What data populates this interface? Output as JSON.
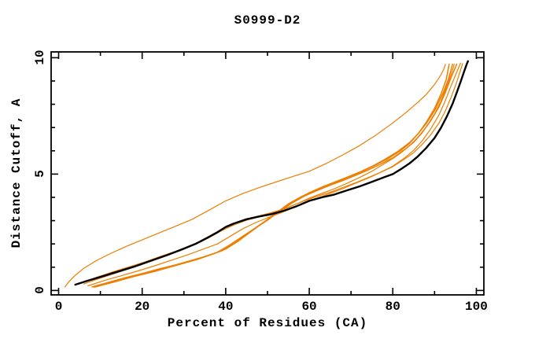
{
  "title": "S0999-D2",
  "colors": {
    "background": "#ffffff",
    "frame": "#000000",
    "text": "#000000",
    "reference_curve": "#000000",
    "model_curves": "#ED7E00"
  },
  "chart_data": {
    "type": "line",
    "title": "S0999-D2",
    "xlabel": "Percent of Residues (CA)",
    "ylabel": "Distance Cutoff, A",
    "xlim": [
      -1.79,
      101.8
    ],
    "ylim": [
      -0.19,
      10.25
    ],
    "x_ticks_major": [
      0,
      20,
      40,
      60,
      80,
      100
    ],
    "x_ticks_minor": [
      10,
      30,
      50,
      70,
      90
    ],
    "y_ticks_major": [
      0,
      5,
      10
    ],
    "y_ticks_minor": [
      1,
      2,
      3,
      4,
      6,
      7,
      8,
      9
    ],
    "grid": false,
    "legend": null,
    "series": [
      {
        "id": "orange-high",
        "color": "#ED7E00",
        "width": 1.2,
        "points": [
          [
            1.5,
            0.15
          ],
          [
            2.5,
            0.38
          ],
          [
            4,
            0.65
          ],
          [
            6,
            0.95
          ],
          [
            9,
            1.28
          ],
          [
            12,
            1.55
          ],
          [
            16,
            1.88
          ],
          [
            20,
            2.17
          ],
          [
            24,
            2.47
          ],
          [
            28,
            2.76
          ],
          [
            32,
            3.06
          ],
          [
            36,
            3.45
          ],
          [
            40,
            3.85
          ],
          [
            44,
            4.16
          ],
          [
            48,
            4.42
          ],
          [
            52,
            4.66
          ],
          [
            56,
            4.89
          ],
          [
            60,
            5.12
          ],
          [
            64,
            5.45
          ],
          [
            68,
            5.82
          ],
          [
            72,
            6.22
          ],
          [
            76,
            6.68
          ],
          [
            80,
            7.2
          ],
          [
            83,
            7.62
          ],
          [
            86,
            8.08
          ],
          [
            88,
            8.42
          ],
          [
            90,
            8.85
          ],
          [
            91.3,
            9.2
          ],
          [
            92.2,
            9.5
          ],
          [
            92.6,
            9.72
          ]
        ]
      },
      {
        "id": "orange-2",
        "color": "#ED7E00",
        "width": 1.2,
        "points": [
          [
            5,
            0.3
          ],
          [
            9,
            0.56
          ],
          [
            13,
            0.8
          ],
          [
            17,
            1.02
          ],
          [
            21,
            1.25
          ],
          [
            25,
            1.5
          ],
          [
            29,
            1.74
          ],
          [
            33,
            2.04
          ],
          [
            36,
            2.33
          ],
          [
            39,
            2.63
          ],
          [
            41,
            2.8
          ],
          [
            44,
            3.0
          ],
          [
            47,
            3.16
          ],
          [
            50,
            3.3
          ],
          [
            53,
            3.45
          ],
          [
            56,
            3.65
          ],
          [
            59,
            3.86
          ],
          [
            62,
            4.05
          ],
          [
            65,
            4.22
          ],
          [
            68,
            4.42
          ],
          [
            71,
            4.62
          ],
          [
            74,
            4.84
          ],
          [
            77,
            5.07
          ],
          [
            80,
            5.32
          ],
          [
            83,
            5.67
          ],
          [
            85,
            5.92
          ],
          [
            87,
            6.27
          ],
          [
            89,
            6.67
          ],
          [
            91,
            7.18
          ],
          [
            92.5,
            7.68
          ],
          [
            94,
            8.32
          ],
          [
            95.2,
            8.9
          ],
          [
            96.1,
            9.4
          ],
          [
            96.7,
            9.75
          ]
        ]
      },
      {
        "id": "orange-3",
        "color": "#ED7E00",
        "width": 1.2,
        "points": [
          [
            6,
            0.28
          ],
          [
            10,
            0.53
          ],
          [
            15,
            0.82
          ],
          [
            20,
            1.12
          ],
          [
            25,
            1.44
          ],
          [
            29,
            1.7
          ],
          [
            33,
            2.0
          ],
          [
            36,
            2.27
          ],
          [
            39,
            2.57
          ],
          [
            42,
            2.82
          ],
          [
            45,
            3.02
          ],
          [
            48,
            3.17
          ],
          [
            51,
            3.32
          ],
          [
            54,
            3.5
          ],
          [
            57,
            3.72
          ],
          [
            60,
            3.97
          ],
          [
            63,
            4.17
          ],
          [
            66,
            4.37
          ],
          [
            69,
            4.6
          ],
          [
            72,
            4.85
          ],
          [
            75,
            5.12
          ],
          [
            78,
            5.45
          ],
          [
            80,
            5.67
          ],
          [
            82,
            5.92
          ],
          [
            84,
            6.22
          ],
          [
            86,
            6.58
          ],
          [
            88,
            7.02
          ],
          [
            90,
            7.58
          ],
          [
            91.5,
            8.12
          ],
          [
            93,
            8.82
          ],
          [
            94.2,
            9.4
          ],
          [
            94.7,
            9.72
          ]
        ]
      },
      {
        "id": "orange-bundle-1",
        "color": "#ED7E00",
        "width": 1.5,
        "points": [
          [
            8,
            0.15
          ],
          [
            12,
            0.35
          ],
          [
            16,
            0.55
          ],
          [
            20,
            0.73
          ],
          [
            24,
            0.92
          ],
          [
            28,
            1.1
          ],
          [
            32,
            1.3
          ],
          [
            35,
            1.46
          ],
          [
            38,
            1.64
          ],
          [
            41,
            1.96
          ],
          [
            44,
            2.32
          ],
          [
            47,
            2.67
          ],
          [
            50,
            3.02
          ],
          [
            53,
            3.42
          ],
          [
            56,
            3.77
          ],
          [
            59,
            4.07
          ],
          [
            62,
            4.3
          ],
          [
            65,
            4.52
          ],
          [
            68,
            4.72
          ],
          [
            71,
            4.94
          ],
          [
            74,
            5.17
          ],
          [
            77,
            5.42
          ],
          [
            80,
            5.7
          ],
          [
            83,
            6.07
          ],
          [
            85,
            6.37
          ],
          [
            87,
            6.77
          ],
          [
            89,
            7.27
          ],
          [
            91,
            7.87
          ],
          [
            92.5,
            8.47
          ],
          [
            94,
            9.17
          ],
          [
            95.3,
            9.72
          ]
        ]
      },
      {
        "id": "orange-bundle-2",
        "color": "#ED7E00",
        "width": 1.5,
        "points": [
          [
            9,
            0.16
          ],
          [
            13,
            0.36
          ],
          [
            17,
            0.56
          ],
          [
            21,
            0.75
          ],
          [
            25,
            0.95
          ],
          [
            29,
            1.14
          ],
          [
            33,
            1.34
          ],
          [
            36,
            1.51
          ],
          [
            39,
            1.7
          ],
          [
            42,
            2.02
          ],
          [
            45,
            2.42
          ],
          [
            48,
            2.8
          ],
          [
            51,
            3.17
          ],
          [
            54,
            3.57
          ],
          [
            57,
            3.92
          ],
          [
            60,
            4.2
          ],
          [
            63,
            4.44
          ],
          [
            66,
            4.65
          ],
          [
            69,
            4.86
          ],
          [
            72,
            5.08
          ],
          [
            75,
            5.33
          ],
          [
            78,
            5.62
          ],
          [
            81,
            5.95
          ],
          [
            84,
            6.35
          ],
          [
            86,
            6.72
          ],
          [
            88,
            7.17
          ],
          [
            90,
            7.72
          ],
          [
            92,
            8.47
          ],
          [
            93.3,
            9.07
          ],
          [
            94.3,
            9.72
          ]
        ]
      },
      {
        "id": "orange-bundle-3",
        "color": "#ED7E00",
        "width": 1.5,
        "points": [
          [
            8.5,
            0.14
          ],
          [
            13,
            0.35
          ],
          [
            18,
            0.6
          ],
          [
            23,
            0.82
          ],
          [
            28,
            1.07
          ],
          [
            33,
            1.32
          ],
          [
            37,
            1.57
          ],
          [
            40,
            1.78
          ],
          [
            43,
            2.12
          ],
          [
            46,
            2.52
          ],
          [
            49,
            2.92
          ],
          [
            52,
            3.32
          ],
          [
            55,
            3.72
          ],
          [
            58,
            4.02
          ],
          [
            61,
            4.27
          ],
          [
            64,
            4.5
          ],
          [
            67,
            4.7
          ],
          [
            70,
            4.92
          ],
          [
            73,
            5.14
          ],
          [
            76,
            5.4
          ],
          [
            79,
            5.68
          ],
          [
            82,
            6.02
          ],
          [
            84,
            6.32
          ],
          [
            86,
            6.72
          ],
          [
            88,
            7.22
          ],
          [
            90,
            7.82
          ],
          [
            91.5,
            8.42
          ],
          [
            92.8,
            9.07
          ],
          [
            93.5,
            9.72
          ]
        ]
      },
      {
        "id": "orange-7",
        "color": "#ED7E00",
        "width": 1.2,
        "points": [
          [
            7,
            0.2
          ],
          [
            11,
            0.43
          ],
          [
            15,
            0.63
          ],
          [
            19,
            0.84
          ],
          [
            23,
            1.06
          ],
          [
            27,
            1.3
          ],
          [
            31,
            1.54
          ],
          [
            35,
            1.8
          ],
          [
            38,
            2.0
          ],
          [
            41,
            2.32
          ],
          [
            44,
            2.64
          ],
          [
            47,
            2.9
          ],
          [
            50,
            3.12
          ],
          [
            53,
            3.32
          ],
          [
            56,
            3.54
          ],
          [
            59,
            3.77
          ],
          [
            62,
            3.97
          ],
          [
            65,
            4.17
          ],
          [
            68,
            4.37
          ],
          [
            71,
            4.6
          ],
          [
            74,
            4.82
          ],
          [
            77,
            5.07
          ],
          [
            80,
            5.34
          ],
          [
            83,
            5.72
          ],
          [
            85,
            6.02
          ],
          [
            87,
            6.42
          ],
          [
            89,
            6.92
          ],
          [
            91,
            7.52
          ],
          [
            92.5,
            8.12
          ],
          [
            94,
            8.82
          ],
          [
            95.3,
            9.37
          ],
          [
            96.2,
            9.77
          ]
        ]
      },
      {
        "id": "reference-black",
        "color": "#000000",
        "width": 2.4,
        "points": [
          [
            4,
            0.25
          ],
          [
            7,
            0.42
          ],
          [
            10,
            0.58
          ],
          [
            14,
            0.8
          ],
          [
            18,
            1.02
          ],
          [
            22,
            1.27
          ],
          [
            26,
            1.52
          ],
          [
            30,
            1.8
          ],
          [
            33,
            2.02
          ],
          [
            36,
            2.3
          ],
          [
            38,
            2.5
          ],
          [
            40,
            2.73
          ],
          [
            42,
            2.88
          ],
          [
            45,
            3.06
          ],
          [
            48,
            3.18
          ],
          [
            51,
            3.28
          ],
          [
            54,
            3.43
          ],
          [
            57,
            3.62
          ],
          [
            60,
            3.85
          ],
          [
            63,
            4.0
          ],
          [
            66,
            4.12
          ],
          [
            69,
            4.3
          ],
          [
            72,
            4.47
          ],
          [
            75,
            4.67
          ],
          [
            78,
            4.87
          ],
          [
            80,
            5.0
          ],
          [
            82,
            5.22
          ],
          [
            84,
            5.46
          ],
          [
            86,
            5.76
          ],
          [
            88,
            6.12
          ],
          [
            90,
            6.55
          ],
          [
            91.5,
            6.98
          ],
          [
            93,
            7.5
          ],
          [
            94.3,
            8.02
          ],
          [
            95.3,
            8.5
          ],
          [
            96.3,
            9.0
          ],
          [
            97.1,
            9.42
          ],
          [
            97.7,
            9.72
          ],
          [
            98,
            9.85
          ]
        ]
      }
    ]
  }
}
